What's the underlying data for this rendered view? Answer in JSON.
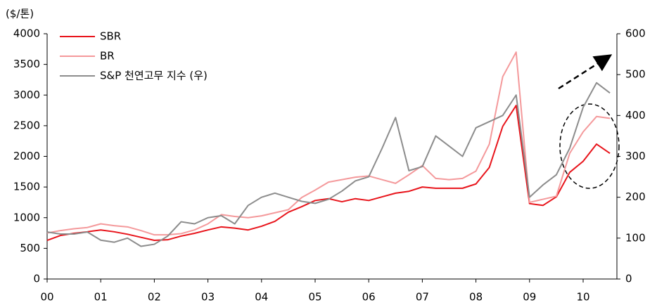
{
  "chart_data": {
    "type": "line",
    "y_label": "($/톤)",
    "x": [
      2000,
      2000.25,
      2000.5,
      2000.75,
      2001,
      2001.25,
      2001.5,
      2001.75,
      2002,
      2002.25,
      2002.5,
      2002.75,
      2003,
      2003.25,
      2003.5,
      2003.75,
      2004,
      2004.25,
      2004.5,
      2004.75,
      2005,
      2005.25,
      2005.5,
      2005.75,
      2006,
      2006.25,
      2006.5,
      2006.75,
      2007,
      2007.25,
      2007.5,
      2007.75,
      2008,
      2008.25,
      2008.5,
      2008.75,
      2009,
      2009.25,
      2009.5,
      2009.75,
      2010,
      2010.25,
      2010.5
    ],
    "series": [
      {
        "name": "SBR",
        "color": "#e8141b",
        "values": [
          630,
          710,
          745,
          770,
          800,
          770,
          730,
          680,
          630,
          640,
          700,
          745,
          800,
          850,
          830,
          800,
          860,
          940,
          1090,
          1180,
          1280,
          1310,
          1260,
          1310,
          1280,
          1340,
          1400,
          1430,
          1500,
          1480,
          1480,
          1480,
          1550,
          1820,
          2490,
          2830,
          1230,
          1200,
          1340,
          1740,
          1920,
          2200,
          2050
        ]
      },
      {
        "name": "BR",
        "color": "#f4999b",
        "values": [
          750,
          790,
          820,
          840,
          900,
          870,
          850,
          790,
          720,
          720,
          740,
          800,
          900,
          1050,
          1020,
          1000,
          1030,
          1080,
          1130,
          1330,
          1450,
          1580,
          1620,
          1660,
          1680,
          1620,
          1560,
          1700,
          1850,
          1640,
          1620,
          1640,
          1760,
          2200,
          3300,
          3700,
          1250,
          1300,
          1350,
          2050,
          2400,
          2650,
          2620
        ]
      },
      {
        "name": "S&P 천연고무 지수 (우)",
        "color": "#8c8c8c",
        "axis": "y2",
        "values": [
          115,
          110,
          110,
          115,
          95,
          90,
          100,
          80,
          85,
          105,
          140,
          135,
          150,
          155,
          135,
          180,
          200,
          210,
          200,
          190,
          185,
          195,
          215,
          240,
          250,
          320,
          395,
          265,
          275,
          350,
          325,
          300,
          370,
          385,
          400,
          450,
          200,
          230,
          255,
          320,
          420,
          480,
          455
        ]
      }
    ],
    "xlim": [
      2000,
      2010.63
    ],
    "xticks": [
      {
        "value": 2000,
        "label": "00"
      },
      {
        "value": 2001,
        "label": "01"
      },
      {
        "value": 2002,
        "label": "02"
      },
      {
        "value": 2003,
        "label": "03"
      },
      {
        "value": 2004,
        "label": "04"
      },
      {
        "value": 2005,
        "label": "05"
      },
      {
        "value": 2006,
        "label": "06"
      },
      {
        "value": 2007,
        "label": "07"
      },
      {
        "value": 2008,
        "label": "08"
      },
      {
        "value": 2009,
        "label": "09"
      },
      {
        "value": 2010,
        "label": "10"
      }
    ],
    "ylim": [
      0,
      4000
    ],
    "yticks": [
      0,
      500,
      1000,
      1500,
      2000,
      2500,
      3000,
      3500,
      4000
    ],
    "y2lim": [
      0,
      600
    ],
    "y2ticks": [
      0,
      100,
      200,
      300,
      400,
      500,
      600
    ],
    "grid": false,
    "legend": "upper left"
  }
}
